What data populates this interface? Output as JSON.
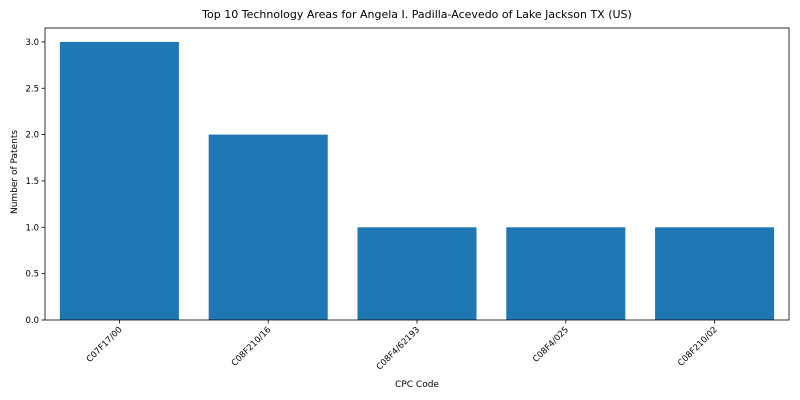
{
  "chart_data": {
    "type": "bar",
    "title": "Top 10 Technology Areas for Angela I. Padilla-Acevedo of Lake Jackson TX (US)",
    "xlabel": "CPC Code",
    "ylabel": "Number of Patents",
    "categories": [
      "C07F17/00",
      "C08F210/16",
      "C08F4/62193",
      "C08F4/025",
      "C08F210/02"
    ],
    "values": [
      3,
      2,
      1,
      1,
      1
    ],
    "ylim": [
      0,
      3.15
    ],
    "yticks": [
      "0.0",
      "0.5",
      "1.0",
      "1.5",
      "2.0",
      "2.5",
      "3.0"
    ],
    "bar_color": "#1f77b4",
    "grid": false,
    "legend": "none"
  }
}
